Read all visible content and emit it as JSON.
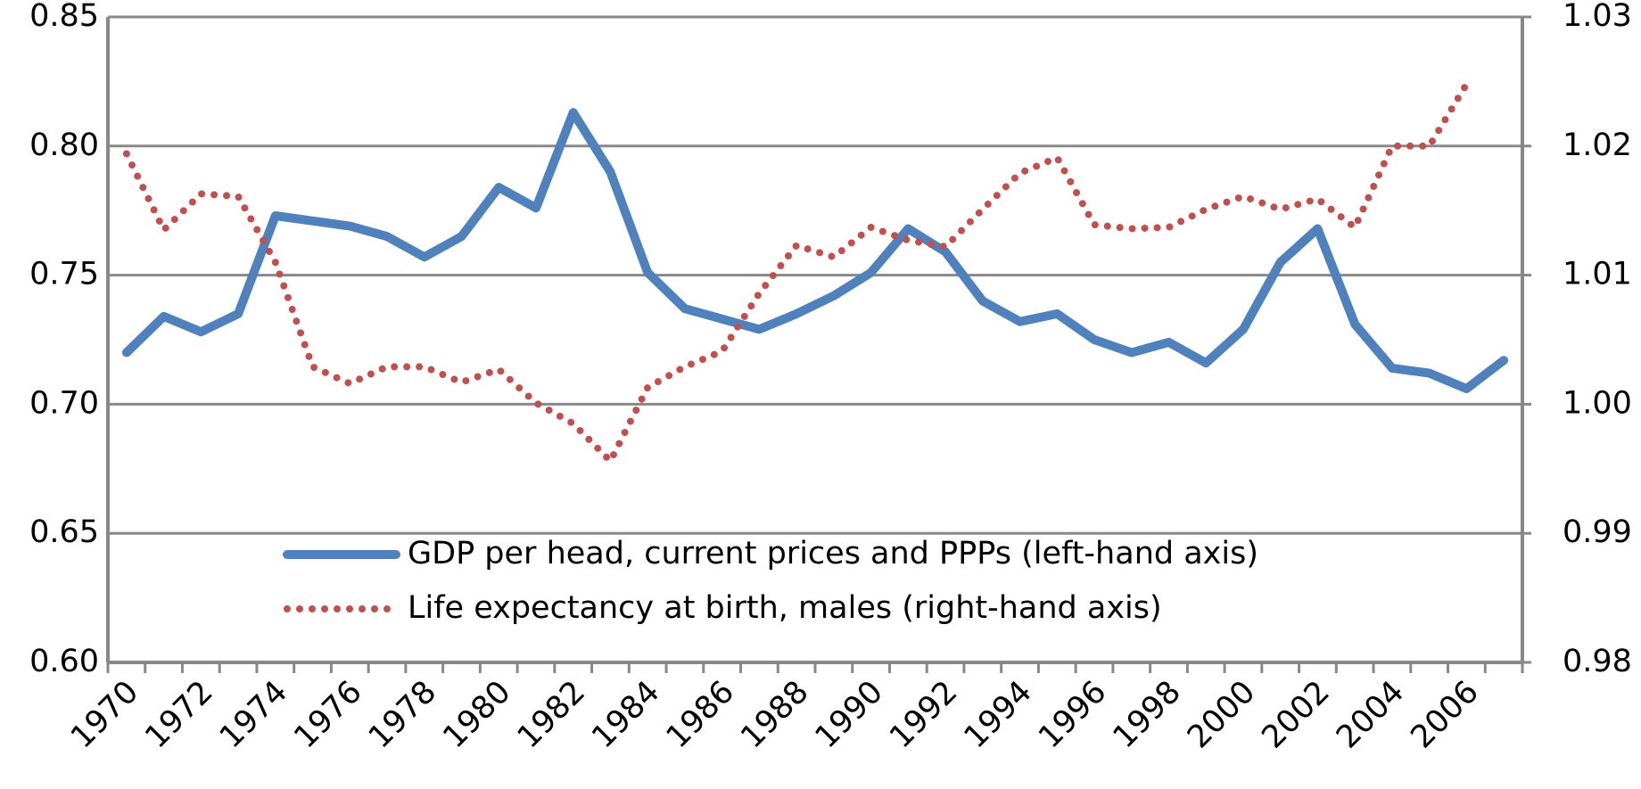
{
  "chart_data": {
    "type": "line",
    "categories": [
      "1970",
      null,
      "1972",
      null,
      "1974",
      null,
      "1976",
      null,
      "1978",
      null,
      "1980",
      null,
      "1982",
      null,
      "1984",
      null,
      "1986",
      null,
      "1988",
      null,
      "1990",
      null,
      "1992",
      null,
      "1994",
      null,
      "1996",
      null,
      "1998",
      null,
      "2000",
      null,
      "2002",
      null,
      "2004",
      null,
      "2006",
      null
    ],
    "series": [
      {
        "name": "GDP per head, current prices and PPPs (left-hand axis)",
        "color": "#4f81bd",
        "values": [
          0.72,
          0.734,
          0.728,
          0.735,
          0.773,
          0.771,
          0.769,
          0.765,
          0.757,
          0.765,
          0.784,
          0.776,
          0.813,
          0.79,
          0.751,
          0.737,
          0.733,
          0.729,
          0.735,
          0.742,
          0.751,
          0.768,
          0.759,
          0.74,
          0.732,
          0.735,
          0.725,
          0.72,
          0.724,
          0.716,
          0.729,
          0.755,
          0.768,
          0.731,
          0.714,
          0.712,
          0.706,
          0.717
        ]
      },
      {
        "name": "Life expectancy at birth, males (right-hand axis)",
        "color": "#c0504d",
        "axis": "y2",
        "dash": "dotted",
        "values": [
          1.0194,
          1.0135,
          1.0163,
          1.0161,
          1.011,
          1.0029,
          1.0016,
          1.0029,
          1.0029,
          1.0017,
          1.0027,
          1.0001,
          0.9985,
          0.9956,
          1.0013,
          1.0029,
          1.0041,
          1.0086,
          1.0123,
          1.0114,
          1.0137,
          1.0127,
          1.0122,
          1.0151,
          1.0179,
          1.0191,
          1.0139,
          1.0136,
          1.0137,
          1.0151,
          1.0161,
          1.0151,
          1.0159,
          1.0137,
          1.02,
          1.02,
          1.0248,
          null
        ]
      }
    ],
    "ylim": [
      0.6,
      0.85
    ],
    "yticks": [
      {
        "value": 0.6,
        "label": "0.60"
      },
      0.65,
      {
        "value": 0.7,
        "label": "0.70"
      },
      0.75,
      {
        "value": 0.8,
        "label": "0.80"
      },
      0.85
    ],
    "y2lim": [
      0.98,
      1.03
    ],
    "y2ticks": [
      0.98,
      0.99,
      {
        "value": 1.0,
        "label": "1.00"
      },
      1.01,
      1.02,
      1.03
    ],
    "grid": true
  }
}
